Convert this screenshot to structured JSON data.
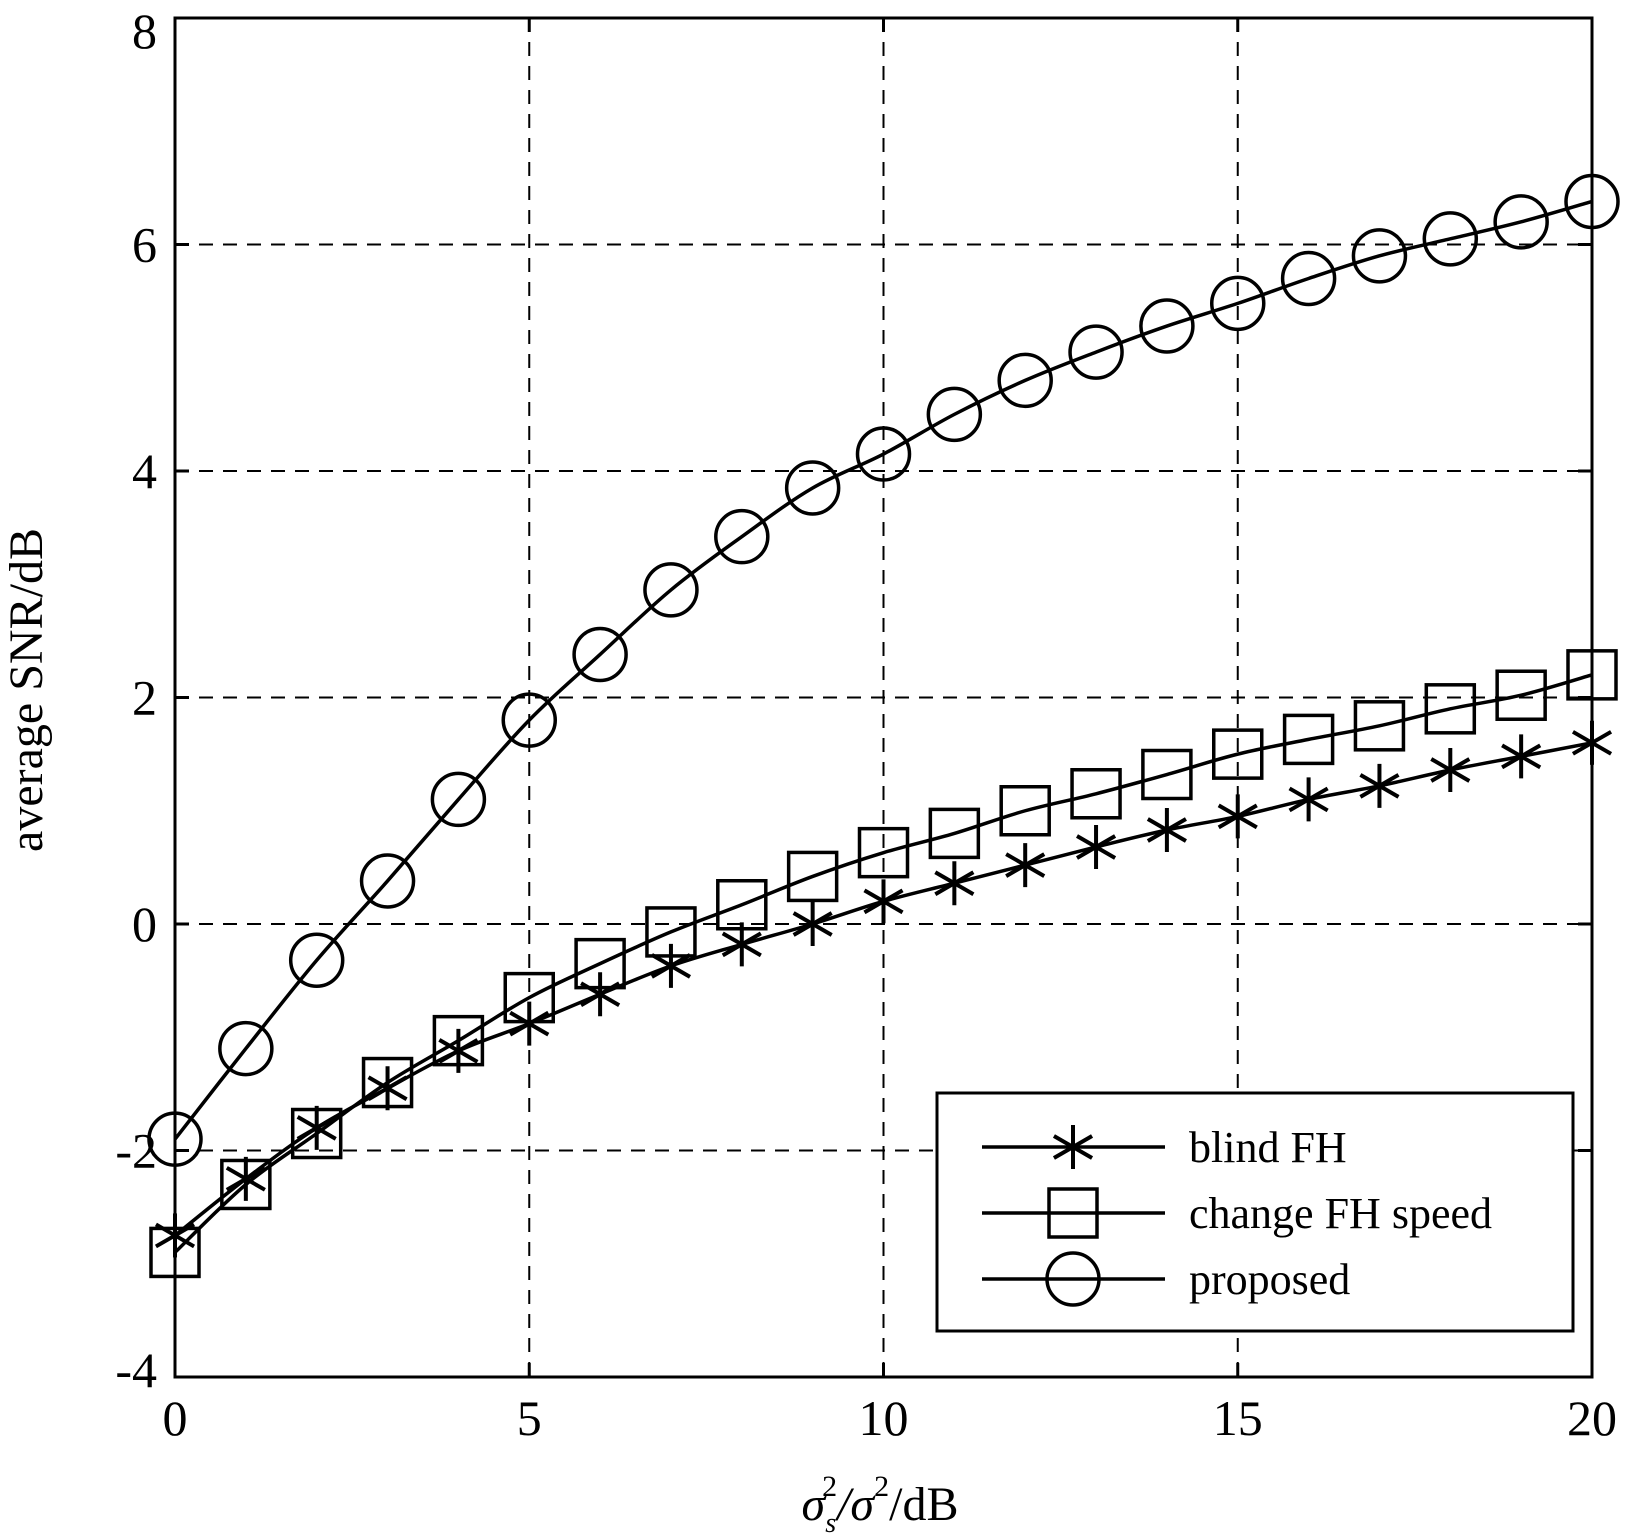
{
  "chart_data": {
    "type": "line",
    "xlabel_parts": {
      "main": "σ",
      "sub": "s",
      "sup": "2",
      "rest": "/σ",
      "sup2": "2",
      "tail": "/dB"
    },
    "ylabel": "average SNR/dB",
    "xlim": [
      0,
      20
    ],
    "ylim": [
      -4,
      8
    ],
    "xticks": [
      0,
      5,
      10,
      15,
      20
    ],
    "yticks": [
      -4,
      -2,
      0,
      2,
      4,
      6,
      8
    ],
    "grid": true,
    "legend_position": "bottom-right",
    "x": [
      0,
      1,
      2,
      3,
      4,
      5,
      6,
      7,
      8,
      9,
      10,
      11,
      12,
      13,
      14,
      15,
      16,
      17,
      18,
      19,
      20
    ],
    "series": [
      {
        "name": "blind FH",
        "marker": "asterisk",
        "values": [
          -2.75,
          -2.25,
          -1.8,
          -1.45,
          -1.12,
          -0.88,
          -0.62,
          -0.37,
          -0.18,
          0.0,
          0.2,
          0.36,
          0.52,
          0.68,
          0.83,
          0.95,
          1.1,
          1.22,
          1.36,
          1.48,
          1.6
        ]
      },
      {
        "name": "change FH speed",
        "marker": "square",
        "values": [
          -2.9,
          -2.3,
          -1.85,
          -1.4,
          -1.03,
          -0.65,
          -0.35,
          -0.07,
          0.17,
          0.42,
          0.63,
          0.8,
          1.0,
          1.15,
          1.32,
          1.5,
          1.63,
          1.75,
          1.9,
          2.02,
          2.2
        ]
      },
      {
        "name": "proposed",
        "marker": "circle",
        "values": [
          -1.9,
          -1.1,
          -0.32,
          0.38,
          1.1,
          1.8,
          2.38,
          2.95,
          3.42,
          3.85,
          4.15,
          4.5,
          4.8,
          5.05,
          5.28,
          5.48,
          5.7,
          5.9,
          6.05,
          6.2,
          6.38
        ]
      }
    ]
  }
}
